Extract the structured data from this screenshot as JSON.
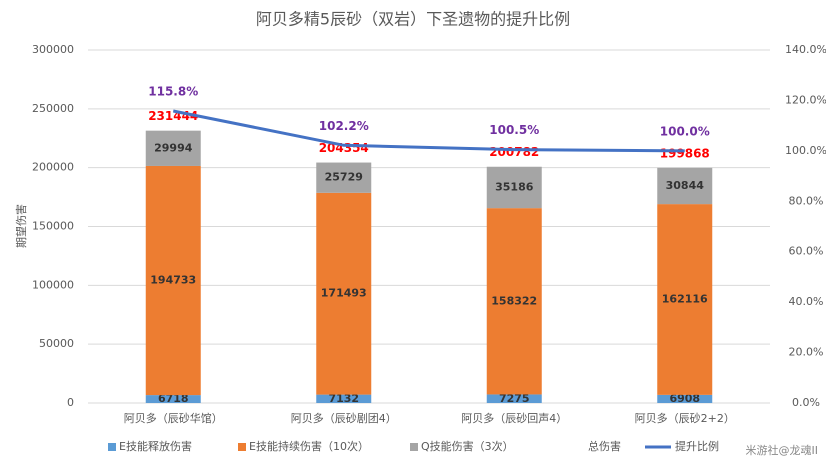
{
  "chart_data": {
    "type": "bar",
    "title": "阿贝多精5辰砂（双岩）下圣遗物的提升比例",
    "ylabel": "期望伤害",
    "categories": [
      "阿贝多（辰砂华馆）",
      "阿贝多（辰砂剧团4）",
      "阿贝多（辰砂回声4）",
      "阿贝多（辰砂2+2）"
    ],
    "series": [
      {
        "name": "E技能释放伤害",
        "type": "bar",
        "color": "#5b9bd5",
        "values": [
          6718,
          7132,
          7275,
          6908
        ]
      },
      {
        "name": "E技能持续伤害（10次）",
        "type": "bar",
        "color": "#ed7d31",
        "values": [
          194733,
          171493,
          158322,
          162116
        ]
      },
      {
        "name": "Q技能伤害（3次）",
        "type": "bar",
        "color": "#a5a5a5",
        "values": [
          29994,
          25729,
          35186,
          30844
        ]
      },
      {
        "name": "总伤害",
        "type": "label",
        "color": "#ff0000",
        "values": [
          231444,
          204354,
          200782,
          199868
        ]
      },
      {
        "name": "提升比例",
        "type": "line",
        "axis": "y2",
        "color": "#4472c4",
        "label_color": "#7030a0",
        "values": [
          115.8,
          102.2,
          100.5,
          100.0
        ],
        "value_labels": [
          "115.8%",
          "102.2%",
          "100.5%",
          "100.0%"
        ]
      }
    ],
    "ylim": [
      0,
      300000
    ],
    "yticks": [
      0,
      50000,
      100000,
      150000,
      200000,
      250000,
      300000
    ],
    "y2lim": [
      0,
      140
    ],
    "y2ticks": [
      {
        "value": 0,
        "label": "0.0%"
      },
      {
        "value": 20,
        "label": "20.0%"
      },
      {
        "value": 40,
        "label": "40.0%"
      },
      {
        "value": 60,
        "label": "60.0%"
      },
      {
        "value": 80,
        "label": "80.0%"
      },
      {
        "value": 100,
        "label": "100.0%"
      },
      {
        "value": 120,
        "label": "120.0%"
      },
      {
        "value": 140,
        "label": "140.0%"
      }
    ],
    "grid": true,
    "legend": "bottom",
    "watermark": "米游社@龙魂II"
  }
}
